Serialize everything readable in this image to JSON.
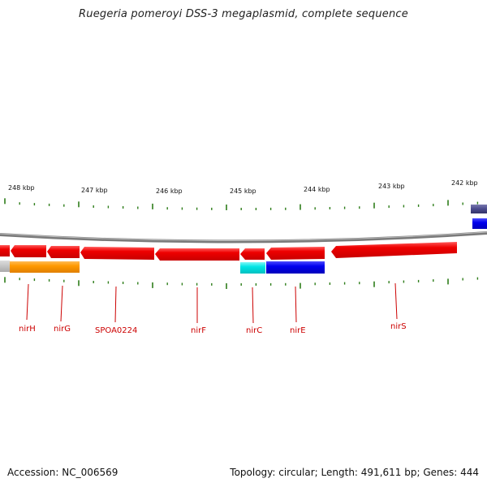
{
  "title": "Ruegeria pomeroyi DSS-3 megaplasmid, complete sequence",
  "footer": {
    "accession": "Accession: NC_006569",
    "stats": "Topology: circular; Length: 491,611 bp; Genes: 444"
  },
  "kbp_labels": [
    "248 kbp",
    "247 kbp",
    "246 kbp",
    "245 kbp",
    "244 kbp",
    "243 kbp",
    "242 kbp"
  ],
  "gene_labels": [
    "nirH",
    "nirG",
    "SPOA0224",
    "nirF",
    "nirC",
    "nirE",
    "nirS"
  ],
  "colors": {
    "backbone": "#808080",
    "tick": "#2e7d1a",
    "gene_red": "#ee0000",
    "gene_orange": "#ff9900",
    "gene_cyan": "#00e5e5",
    "gene_blue": "#0000ee",
    "gene_slate": "#4a4a8c",
    "gene_gray": "#bbbbbb",
    "label": "#cc0000"
  }
}
